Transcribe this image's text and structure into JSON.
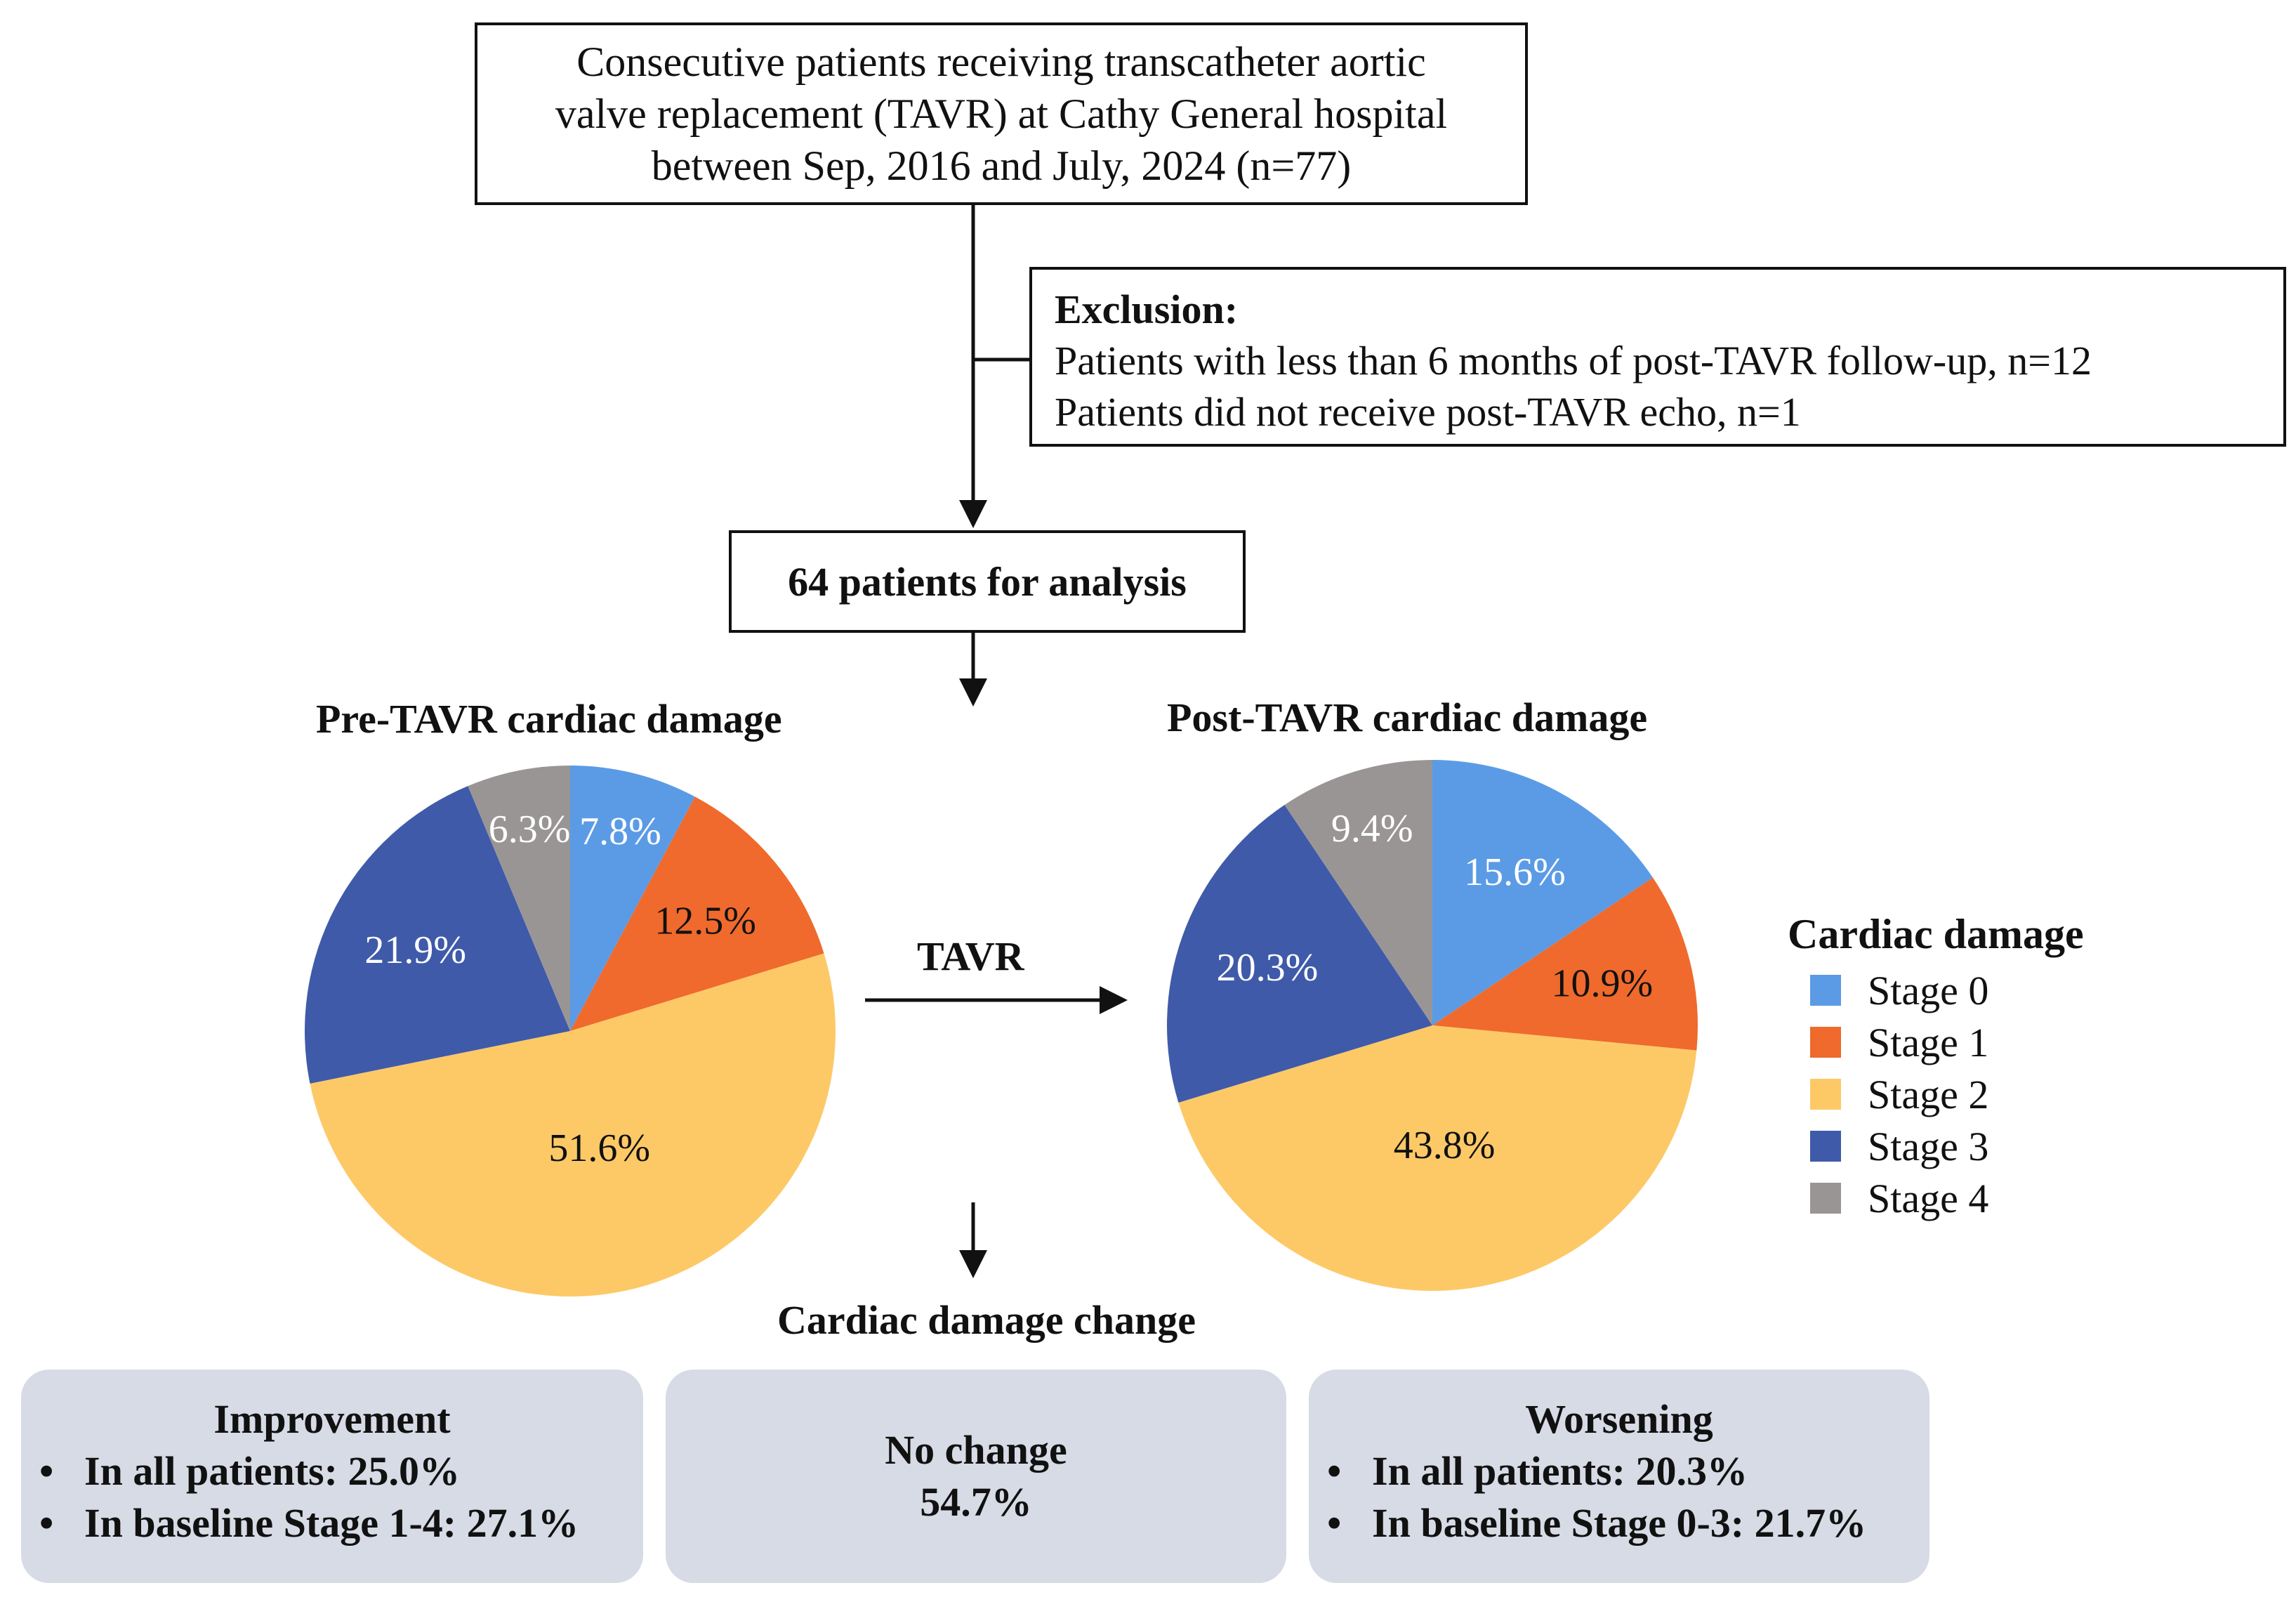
{
  "flow": {
    "top_box_lines": [
      "Consecutive patients receiving transcatheter aortic",
      "valve replacement (TAVR) at Cathy General hospital",
      "between Sep, 2016 and July, 2024 (n=77)"
    ],
    "exclusion": {
      "title": "Exclusion:",
      "lines": [
        "Patients with less than 6 months of post-TAVR follow-up, n=12",
        "Patients did not receive post-TAVR echo, n=1"
      ]
    },
    "analysis_label": "64 patients for analysis",
    "tavr_label": "TAVR"
  },
  "chart_data": [
    {
      "type": "pie",
      "title": "Pre-TAVR cardiac damage",
      "categories": [
        "Stage 0",
        "Stage 1",
        "Stage 2",
        "Stage 3",
        "Stage 4"
      ],
      "values": [
        7.8,
        12.5,
        51.6,
        21.9,
        6.3
      ],
      "labels": [
        "7.8%",
        "12.5%",
        "51.6%",
        "21.9%",
        "6.3%"
      ],
      "colors": [
        "#5b9be6",
        "#ef6a2c",
        "#fdc967",
        "#3f5aa9",
        "#9a9595"
      ]
    },
    {
      "type": "pie",
      "title": "Post-TAVR cardiac damage",
      "categories": [
        "Stage 0",
        "Stage 1",
        "Stage 2",
        "Stage 3",
        "Stage 4"
      ],
      "values": [
        15.6,
        10.9,
        43.8,
        20.3,
        9.4
      ],
      "labels": [
        "15.6%",
        "10.9%",
        "43.8%",
        "20.3%",
        "9.4%"
      ],
      "colors": [
        "#5b9be6",
        "#ef6a2c",
        "#fdc967",
        "#3f5aa9",
        "#9a9595"
      ]
    }
  ],
  "legend": {
    "title": "Cardiac damage",
    "items": [
      {
        "label": "Stage 0",
        "color": "#5b9be6"
      },
      {
        "label": "Stage 1",
        "color": "#ef6a2c"
      },
      {
        "label": "Stage 2",
        "color": "#fdc967"
      },
      {
        "label": "Stage 3",
        "color": "#3f5aa9"
      },
      {
        "label": "Stage 4",
        "color": "#9a9595"
      }
    ]
  },
  "change": {
    "title": "Cardiac damage change",
    "improvement": {
      "title": "Improvement",
      "bullets": [
        "In all patients: 25.0%",
        "In baseline Stage 1-4: 27.1%"
      ]
    },
    "no_change": {
      "title": "No change",
      "value": "54.7%"
    },
    "worsening": {
      "title": "Worsening",
      "bullets": [
        "In all patients: 20.3%",
        "In baseline Stage 0-3: 21.7%"
      ]
    }
  },
  "colors": {
    "panel_bg": "#d6dbe5",
    "label_dark": "#111111",
    "label_light": "#ffffff"
  }
}
